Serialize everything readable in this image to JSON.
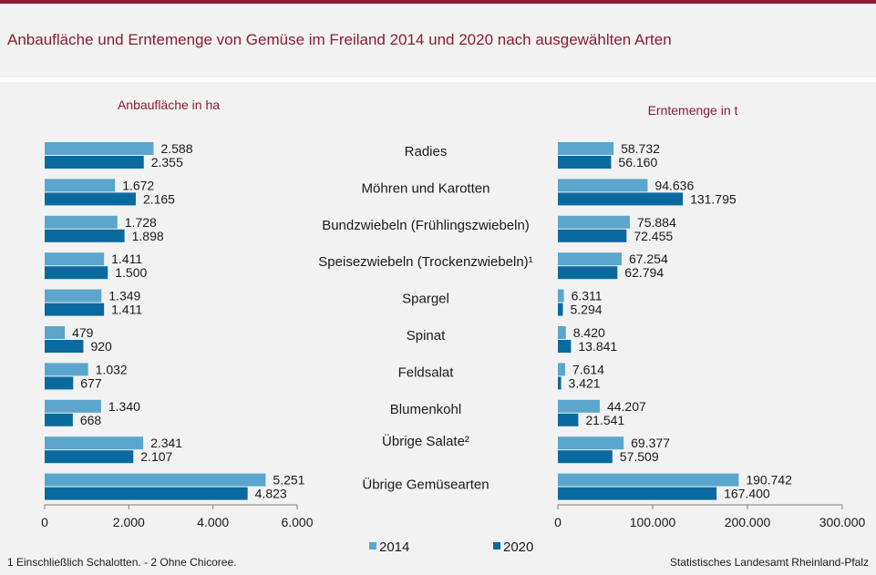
{
  "title": "Anbaufläche und Erntemenge von Gemüse im Freiland 2014 und 2020 nach ausgewählten Arten",
  "footnote": "1 Einschließlich Schalotten. - 2 Ohne Chicoree.",
  "source": "Statistisches Landesamt Rheinland-Pfalz",
  "colors": {
    "accent": "#8a1c33",
    "s2014": "#5aa6cc",
    "s2020": "#0a6a9e"
  },
  "chart_data": [
    {
      "type": "bar",
      "orientation": "horizontal",
      "title": "Anbaufläche  in ha",
      "categories": [
        "Radies",
        "Möhren und Karotten",
        "Bundzwiebeln (Frühlingszwiebeln)",
        "Speisezwiebeln (Trockenzwiebeln)¹",
        "Spargel",
        "Spinat",
        "Feldsalat",
        "Blumenkohl",
        "Übrige Salate²",
        "Übrige Gemüsearten"
      ],
      "series": [
        {
          "name": "2014",
          "values": [
            2588,
            1672,
            1728,
            1411,
            1349,
            479,
            1032,
            1340,
            2341,
            5251
          ],
          "labels": [
            "2.588",
            "1.672",
            "1.728",
            "1.411",
            "1.349",
            "479",
            "1.032",
            "1.340",
            "2.341",
            "5.251"
          ]
        },
        {
          "name": "2020",
          "values": [
            2355,
            2165,
            1898,
            1500,
            1411,
            920,
            677,
            668,
            2107,
            4823
          ],
          "labels": [
            "2.355",
            "2.165",
            "1.898",
            "1.500",
            "1.411",
            "920",
            "677",
            "668",
            "2.107",
            "4.823"
          ]
        }
      ],
      "xlim": [
        0,
        6000
      ],
      "ticks": [
        0,
        2000,
        4000,
        6000
      ],
      "tick_labels": [
        "0",
        "2.000",
        "4.000",
        "6.000"
      ],
      "grid": false
    },
    {
      "type": "bar",
      "orientation": "horizontal",
      "title": "Erntemenge  in t",
      "categories": [
        "Radies",
        "Möhren und Karotten",
        "Bundzwiebeln (Frühlingszwiebeln)",
        "Speisezwiebeln (Trockenzwiebeln)¹",
        "Spargel",
        "Spinat",
        "Feldsalat",
        "Blumenkohl",
        "Übrige Salate²",
        "Übrige Gemüsearten"
      ],
      "series": [
        {
          "name": "2014",
          "values": [
            58732,
            94636,
            75884,
            67254,
            6311,
            8420,
            7614,
            44207,
            69377,
            190742
          ],
          "labels": [
            "58.732",
            "94.636",
            "75.884",
            "67.254",
            "6.311",
            "8.420",
            "7.614",
            "44.207",
            "69.377",
            "190.742"
          ]
        },
        {
          "name": "2020",
          "values": [
            56160,
            131795,
            72455,
            62794,
            5294,
            13841,
            3421,
            21541,
            57509,
            167400
          ],
          "labels": [
            "56.160",
            "131.795",
            "72.455",
            "62.794",
            "5.294",
            "13.841",
            "3.421",
            "21.541",
            "57.509",
            "167.400"
          ]
        }
      ],
      "xlim": [
        0,
        300000
      ],
      "ticks": [
        0,
        100000,
        200000,
        300000
      ],
      "tick_labels": [
        "0",
        "100.000",
        "200.000",
        "300.000"
      ],
      "grid": false
    }
  ],
  "legend": {
    "placement": "bottom-center",
    "items": [
      "2014",
      "2020"
    ]
  }
}
